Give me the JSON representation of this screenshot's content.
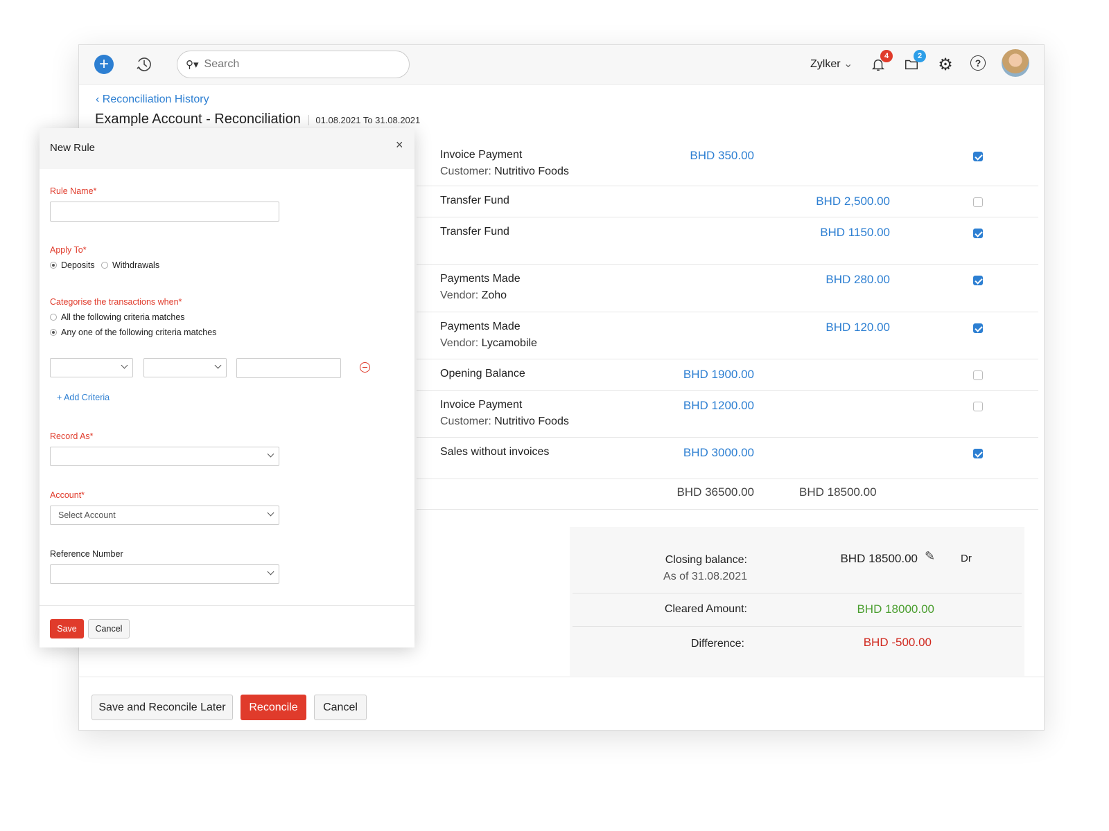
{
  "header": {
    "search_placeholder": "Search",
    "org_name": "Zylker",
    "notifications_count": "4",
    "files_count": "2"
  },
  "breadcrumb": {
    "back_label": "Reconciliation History"
  },
  "page": {
    "title": "Example Account - Reconciliation",
    "date_range": "01.08.2021 To 31.08.2021"
  },
  "transactions": [
    {
      "title": "Invoice Payment",
      "sub_label": "Customer:",
      "sub_value": "Nutritivo Foods",
      "deposit": "BHD 350.00",
      "withdrawal": "",
      "checked": true
    },
    {
      "title": "Transfer Fund",
      "sub_label": "",
      "sub_value": "",
      "deposit": "",
      "withdrawal": "BHD 2,500.00",
      "checked": false
    },
    {
      "title": "Transfer Fund",
      "sub_label": "",
      "sub_value": "",
      "deposit": "",
      "withdrawal": "BHD 1150.00",
      "checked": true
    },
    {
      "title": "Payments Made",
      "sub_label": "Vendor:",
      "sub_value": "Zoho",
      "deposit": "",
      "withdrawal": "BHD 280.00",
      "checked": true
    },
    {
      "title": "Payments Made",
      "sub_label": "Vendor:",
      "sub_value": "Lycamobile",
      "deposit": "",
      "withdrawal": "BHD 120.00",
      "checked": true
    },
    {
      "title": "Opening Balance",
      "sub_label": "",
      "sub_value": "",
      "deposit": "BHD 1900.00",
      "withdrawal": "",
      "checked": false
    },
    {
      "title": "Invoice Payment",
      "sub_label": "Customer:",
      "sub_value": "Nutritivo Foods",
      "deposit": "BHD 1200.00",
      "withdrawal": "",
      "checked": false
    },
    {
      "title": "Sales without invoices",
      "sub_label": "",
      "sub_value": "",
      "deposit": "BHD 3000.00",
      "withdrawal": "",
      "checked": true
    }
  ],
  "totals": {
    "deposits": "BHD 36500.00",
    "withdrawals": "BHD 18500.00"
  },
  "summary": {
    "closing_label": "Closing balance:",
    "closing_date": "As of 31.08.2021",
    "closing_value": "BHD 18500.00",
    "closing_type": "Dr",
    "cleared_label": "Cleared Amount:",
    "cleared_value": "BHD 18000.00",
    "difference_label": "Difference:",
    "difference_value": "BHD -500.00"
  },
  "footer": {
    "save_later": "Save and Reconcile Later",
    "reconcile": "Reconcile",
    "cancel": "Cancel"
  },
  "modal": {
    "title": "New Rule",
    "rule_name_label": "Rule Name*",
    "rule_name_value": "",
    "apply_to_label": "Apply To*",
    "apply_options": [
      "Deposits",
      "Withdrawals"
    ],
    "apply_selected": "Deposits",
    "categorise_label": "Categorise the transactions when*",
    "criteria_options": [
      "All the following criteria matches",
      "Any one of the following criteria matches"
    ],
    "criteria_selected": "Any one of the following criteria matches",
    "add_criteria": "+ Add Criteria",
    "record_as_label": "Record As*",
    "record_as_value": "",
    "account_label": "Account*",
    "account_placeholder": "Select Account",
    "reference_label": "Reference Number",
    "reference_value": "",
    "save": "Save",
    "cancel": "Cancel"
  },
  "colors": {
    "accent": "#2d7fd2",
    "danger": "#e03b2b",
    "success": "#4a9e2f"
  }
}
